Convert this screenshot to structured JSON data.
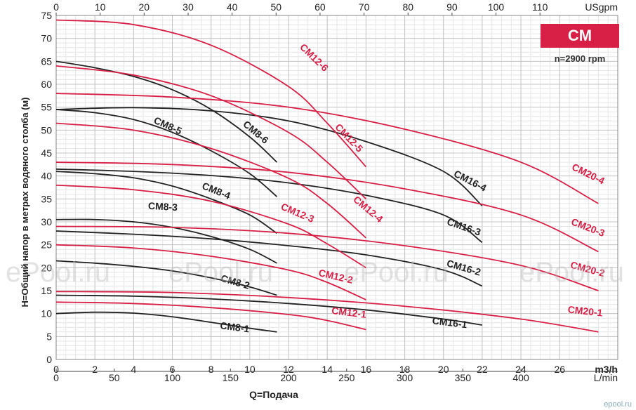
{
  "badge": {
    "title": "CM",
    "speed": "n=2900 rpm"
  },
  "watermark": "ePool.ru",
  "corner_text": "epool.ru",
  "colors": {
    "black_series": "#222222",
    "red_series": "#d81f45",
    "grid_major": "#c4c4c4",
    "grid_minor": "#e6e6e6"
  },
  "chart_data": {
    "type": "line",
    "ylabel": "H=Общий напор в метрах водяного столба (м)",
    "xlabel": "Q=Подача",
    "x_unit": "m3/h",
    "top_axis_unit": "USgpm",
    "bottom_axis_unit": "L/min",
    "xlim": [
      0,
      29
    ],
    "ylim": [
      0,
      75
    ],
    "grid": true,
    "x_ticks": [
      0,
      2,
      4,
      6,
      8,
      10,
      12,
      14,
      16,
      18,
      20,
      22,
      24,
      26
    ],
    "y_ticks": [
      0,
      5,
      10,
      15,
      20,
      25,
      30,
      35,
      40,
      45,
      50,
      55,
      60,
      65,
      70,
      75
    ],
    "usgpm_ticks": [
      0,
      10,
      20,
      30,
      40,
      50,
      60,
      70,
      80,
      90,
      100,
      110
    ],
    "lmin_ticks": [
      0,
      50,
      100,
      150,
      200,
      250,
      300,
      350,
      400
    ],
    "series": [
      {
        "name": "CM8-1",
        "color": "black",
        "points": [
          [
            0,
            10
          ],
          [
            2,
            10.3
          ],
          [
            4,
            10.1
          ],
          [
            6,
            9.3
          ],
          [
            8,
            8.1
          ],
          [
            10,
            6.8
          ],
          [
            11.4,
            6
          ]
        ]
      },
      {
        "name": "CM8-2",
        "color": "black",
        "points": [
          [
            0,
            21.5
          ],
          [
            2,
            21
          ],
          [
            4,
            20.3
          ],
          [
            6,
            19.3
          ],
          [
            8,
            17.8
          ],
          [
            10,
            15.8
          ],
          [
            11.4,
            14
          ]
        ]
      },
      {
        "name": "CM8-3",
        "color": "black",
        "points": [
          [
            0,
            30.5
          ],
          [
            2,
            30.5
          ],
          [
            4,
            30
          ],
          [
            6,
            28.8
          ],
          [
            8,
            26.8
          ],
          [
            10,
            24
          ],
          [
            11.4,
            21
          ]
        ]
      },
      {
        "name": "CM8-4",
        "color": "black",
        "points": [
          [
            0,
            41
          ],
          [
            2,
            40.5
          ],
          [
            4,
            39.6
          ],
          [
            6,
            37.8
          ],
          [
            8,
            35
          ],
          [
            10,
            31.5
          ],
          [
            11.4,
            27.5
          ]
        ]
      },
      {
        "name": "CM8-5",
        "color": "black",
        "points": [
          [
            0,
            54.5
          ],
          [
            2,
            53.8
          ],
          [
            4,
            52.3
          ],
          [
            6,
            49.5
          ],
          [
            8,
            45.5
          ],
          [
            10,
            40.5
          ],
          [
            11.4,
            35.5
          ]
        ]
      },
      {
        "name": "CM8-6",
        "color": "black",
        "points": [
          [
            0,
            65
          ],
          [
            2,
            63.6
          ],
          [
            4,
            61.7
          ],
          [
            6,
            58.8
          ],
          [
            8,
            54.5
          ],
          [
            10,
            48.5
          ],
          [
            11.4,
            43
          ]
        ]
      },
      {
        "name": "CM16-1",
        "color": "black",
        "points": [
          [
            0,
            14
          ],
          [
            4,
            13.8
          ],
          [
            8,
            13.2
          ],
          [
            12,
            12.2
          ],
          [
            16,
            10.8
          ],
          [
            20,
            8.8
          ],
          [
            22,
            7.5
          ]
        ]
      },
      {
        "name": "CM16-2",
        "color": "black",
        "points": [
          [
            0,
            28
          ],
          [
            4,
            27.3
          ],
          [
            8,
            26.3
          ],
          [
            12,
            24.8
          ],
          [
            16,
            22.8
          ],
          [
            20,
            19.5
          ],
          [
            22,
            16
          ]
        ]
      },
      {
        "name": "CM16-3",
        "color": "black",
        "points": [
          [
            0,
            41.5
          ],
          [
            4,
            41
          ],
          [
            8,
            40.1
          ],
          [
            12,
            38.5
          ],
          [
            16,
            35.8
          ],
          [
            20,
            31.5
          ],
          [
            22,
            25.5
          ]
        ]
      },
      {
        "name": "CM16-4",
        "color": "black",
        "points": [
          [
            0,
            54.5
          ],
          [
            4,
            54.9
          ],
          [
            8,
            54.2
          ],
          [
            12,
            52
          ],
          [
            16,
            47.5
          ],
          [
            20,
            41
          ],
          [
            22,
            33.5
          ]
        ]
      },
      {
        "name": "CM12-1",
        "color": "red",
        "points": [
          [
            0,
            12.5
          ],
          [
            4,
            12.2
          ],
          [
            8,
            11.3
          ],
          [
            12,
            9.8
          ],
          [
            14,
            8.5
          ],
          [
            16,
            6.5
          ]
        ]
      },
      {
        "name": "CM12-2",
        "color": "red",
        "points": [
          [
            0,
            25
          ],
          [
            4,
            24.3
          ],
          [
            8,
            22.5
          ],
          [
            12,
            19.5
          ],
          [
            14,
            16.8
          ],
          [
            16,
            13
          ]
        ]
      },
      {
        "name": "CM12-3",
        "color": "red",
        "points": [
          [
            0,
            38
          ],
          [
            4,
            37
          ],
          [
            8,
            34.5
          ],
          [
            12,
            29.5
          ],
          [
            14,
            25.2
          ],
          [
            16,
            20
          ]
        ]
      },
      {
        "name": "CM12-4",
        "color": "red",
        "points": [
          [
            0,
            51.5
          ],
          [
            4,
            50
          ],
          [
            8,
            46
          ],
          [
            12,
            39.5
          ],
          [
            14,
            34
          ],
          [
            16,
            26.5
          ]
        ]
      },
      {
        "name": "CM12-5",
        "color": "red",
        "points": [
          [
            0,
            64
          ],
          [
            4,
            62
          ],
          [
            8,
            57.5
          ],
          [
            12,
            49.5
          ],
          [
            14,
            43
          ],
          [
            16,
            35
          ]
        ]
      },
      {
        "name": "CM12-6",
        "color": "red",
        "points": [
          [
            0,
            74
          ],
          [
            4,
            73
          ],
          [
            8,
            68.5
          ],
          [
            12,
            59.5
          ],
          [
            14,
            51.5
          ],
          [
            16,
            42
          ]
        ]
      },
      {
        "name": "CM20-1",
        "color": "red",
        "points": [
          [
            0,
            14.8
          ],
          [
            6,
            14.6
          ],
          [
            12,
            13.5
          ],
          [
            18,
            11.6
          ],
          [
            24,
            8.8
          ],
          [
            28,
            6
          ]
        ]
      },
      {
        "name": "CM20-2",
        "color": "red",
        "points": [
          [
            0,
            29
          ],
          [
            6,
            28.8
          ],
          [
            12,
            27.5
          ],
          [
            18,
            24.8
          ],
          [
            24,
            20.5
          ],
          [
            28,
            15
          ]
        ]
      },
      {
        "name": "CM20-3",
        "color": "red",
        "points": [
          [
            0,
            43
          ],
          [
            6,
            42.5
          ],
          [
            12,
            40.8
          ],
          [
            18,
            37.2
          ],
          [
            24,
            31.5
          ],
          [
            28,
            23.5
          ]
        ]
      },
      {
        "name": "CM20-4",
        "color": "red",
        "points": [
          [
            0,
            58
          ],
          [
            6,
            57.2
          ],
          [
            12,
            55
          ],
          [
            18,
            50.2
          ],
          [
            24,
            43
          ],
          [
            28,
            34
          ]
        ]
      }
    ],
    "curve_labels": [
      {
        "text": "CM8-1",
        "x": 9.2,
        "y": 6.3,
        "angle": 7
      },
      {
        "text": "CM8-2",
        "x": 9.2,
        "y": 16.2,
        "angle": 16
      },
      {
        "text": "CM8-3",
        "x": 5.5,
        "y": 32.6,
        "angle": 3
      },
      {
        "text": "CM8-4",
        "x": 8.2,
        "y": 36.1,
        "angle": 22
      },
      {
        "text": "CM8-5",
        "x": 5.7,
        "y": 50.3,
        "angle": 24
      },
      {
        "text": "CM8-6",
        "x": 10.2,
        "y": 49,
        "angle": 40
      },
      {
        "text": "CM16-1",
        "x": 20.3,
        "y": 7.3,
        "angle": 7
      },
      {
        "text": "CM16-2",
        "x": 21,
        "y": 19.3,
        "angle": 16
      },
      {
        "text": "CM16-3",
        "x": 21,
        "y": 28.2,
        "angle": 19
      },
      {
        "text": "CM16-4",
        "x": 21.3,
        "y": 38.3,
        "angle": 27
      },
      {
        "text": "CM12-1",
        "x": 15.1,
        "y": 9.5,
        "angle": 7
      },
      {
        "text": "CM12-2",
        "x": 14.4,
        "y": 17.4,
        "angle": 13
      },
      {
        "text": "CM12-3",
        "x": 12.4,
        "y": 31.3,
        "angle": 23
      },
      {
        "text": "CM12-4",
        "x": 16,
        "y": 32.2,
        "angle": 40
      },
      {
        "text": "CM12-5",
        "x": 15,
        "y": 47.8,
        "angle": 46
      },
      {
        "text": "CM12-6",
        "x": 13.2,
        "y": 65.3,
        "angle": 44
      },
      {
        "text": "CM20-1",
        "x": 27.3,
        "y": 9.8,
        "angle": 6
      },
      {
        "text": "CM20-2",
        "x": 27.4,
        "y": 19,
        "angle": 15
      },
      {
        "text": "CM20-3",
        "x": 27.4,
        "y": 28.1,
        "angle": 21
      },
      {
        "text": "CM20-4",
        "x": 27.4,
        "y": 39.8,
        "angle": 26
      }
    ]
  }
}
